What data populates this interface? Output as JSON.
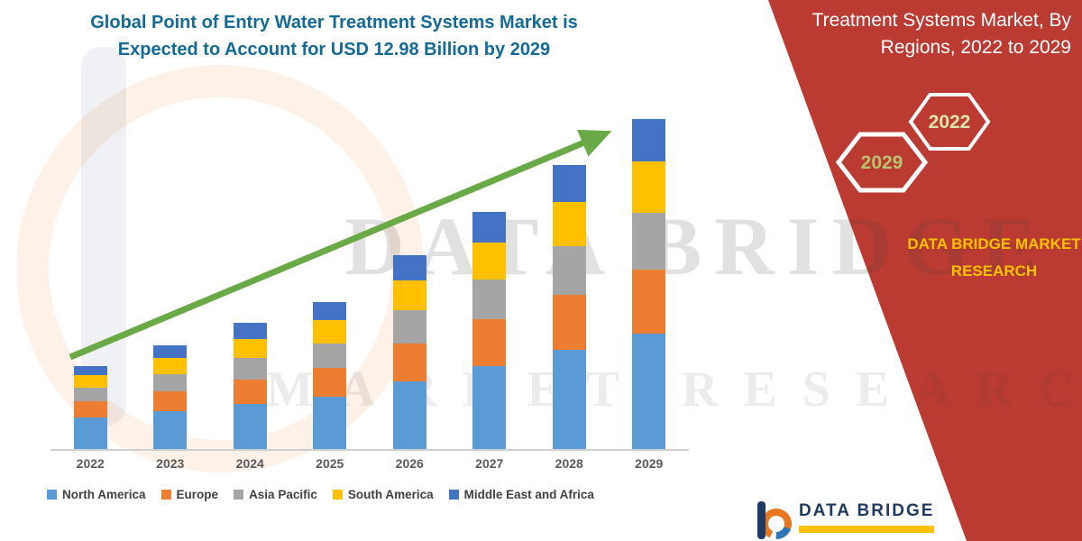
{
  "title": {
    "line1": "Global Point of Entry Water Treatment Systems Market is",
    "line2": "Expected to Account for USD 12.98 Billion by 2029"
  },
  "right_panel": {
    "background_color": "#bb3a32",
    "heading_line1": "Treatment Systems Market, By",
    "heading_line2": "Regions, 2022 to 2029",
    "hexagon_back_label": "2022",
    "hexagon_front_label": "2029",
    "brand_line1": "DATA BRIDGE MARKET",
    "brand_line2": "RESEARCH",
    "brand_color": "#ffc400"
  },
  "footer_logo": {
    "name": "DATA BRIDGE",
    "underline_color": "#ffc000"
  },
  "watermark": {
    "line1": "DATA BRIDGE",
    "line2": "MARKET RESEARCH"
  },
  "chart_data": {
    "type": "bar",
    "stacked": true,
    "title": "Global Point of Entry Water Treatment Systems Market is Expected to Account for USD 12.98 Billion by 2029",
    "unit": "USD Billion",
    "ylim": [
      0,
      13
    ],
    "grid": false,
    "legend_position": "bottom",
    "trend_arrow": true,
    "categories": [
      "2022",
      "2023",
      "2024",
      "2025",
      "2026",
      "2027",
      "2028",
      "2029"
    ],
    "series": [
      {
        "name": "North America",
        "color": "#5B9BD5",
        "values": [
          1.24,
          1.49,
          1.77,
          2.05,
          2.66,
          3.26,
          3.89,
          4.53
        ]
      },
      {
        "name": "Europe",
        "color": "#ED7D31",
        "values": [
          0.64,
          0.78,
          0.96,
          1.13,
          1.49,
          1.84,
          2.19,
          2.55
        ]
      },
      {
        "name": "Asia Pacific",
        "color": "#A5A5A5",
        "values": [
          0.53,
          0.67,
          0.85,
          0.99,
          1.31,
          1.59,
          1.91,
          2.23
        ]
      },
      {
        "name": "South America",
        "color": "#FFC000",
        "values": [
          0.5,
          0.64,
          0.74,
          0.89,
          1.17,
          1.45,
          1.73,
          2.02
        ]
      },
      {
        "name": "Middle East and Africa",
        "color": "#4472C4",
        "values": [
          0.35,
          0.5,
          0.64,
          0.74,
          0.99,
          1.2,
          1.45,
          1.66
        ]
      }
    ],
    "totals": [
      3.26,
      4.08,
      4.97,
      5.8,
      7.62,
      9.34,
      11.17,
      12.99
    ]
  }
}
